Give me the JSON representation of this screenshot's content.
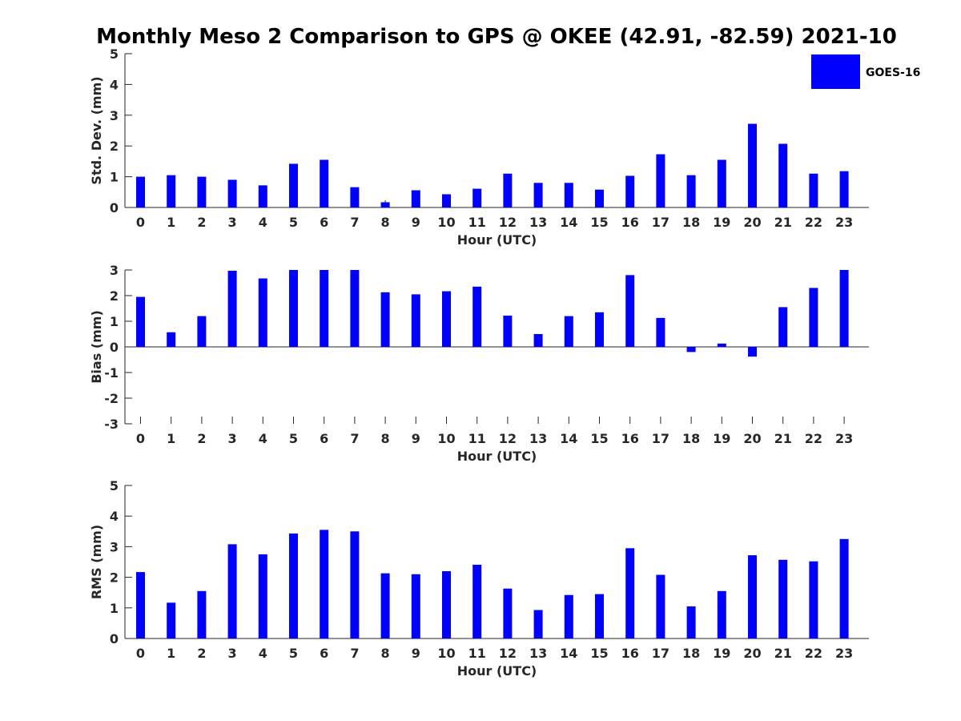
{
  "title": "Monthly Meso 2 Comparison to GPS @ OKEE (42.91, -82.59) 2021-10",
  "legend": {
    "label": "GOES-16",
    "color": "#0000ff"
  },
  "chart_data": [
    {
      "type": "bar",
      "name": "std",
      "ylabel": "Std. Dev. (mm)",
      "xlabel": "Hour (UTC)",
      "categories": [
        "0",
        "1",
        "2",
        "3",
        "4",
        "5",
        "6",
        "7",
        "8",
        "9",
        "10",
        "11",
        "12",
        "13",
        "14",
        "15",
        "16",
        "17",
        "18",
        "19",
        "20",
        "21",
        "22",
        "23"
      ],
      "ylim": [
        0,
        5
      ],
      "yticks": [
        0,
        1,
        2,
        3,
        4,
        5
      ],
      "ytick_labels": [
        "0",
        "1",
        "2",
        "3",
        "4",
        "5"
      ],
      "series": [
        {
          "name": "GOES-16",
          "color": "#0000ff",
          "values": [
            1.0,
            1.05,
            1.0,
            0.9,
            0.72,
            1.42,
            1.55,
            0.66,
            0.17,
            0.56,
            0.43,
            0.61,
            1.1,
            0.8,
            0.8,
            0.58,
            1.03,
            1.73,
            1.05,
            1.55,
            2.72,
            2.07,
            1.1,
            1.18
          ]
        }
      ]
    },
    {
      "type": "bar",
      "name": "bias",
      "ylabel": "Bias (mm)",
      "xlabel": "Hour (UTC)",
      "categories": [
        "0",
        "1",
        "2",
        "3",
        "4",
        "5",
        "6",
        "7",
        "8",
        "9",
        "10",
        "11",
        "12",
        "13",
        "14",
        "15",
        "16",
        "17",
        "18",
        "19",
        "20",
        "21",
        "22",
        "23"
      ],
      "ylim": [
        -3,
        3
      ],
      "yticks": [
        -3,
        -2,
        -1,
        0,
        1,
        2,
        3
      ],
      "ytick_labels": [
        "-3",
        "-2",
        "-1",
        "0",
        "1",
        "2",
        "3"
      ],
      "series": [
        {
          "name": "GOES-16",
          "color": "#0000ff",
          "values": [
            1.95,
            0.57,
            1.2,
            2.97,
            2.67,
            3.0,
            3.0,
            3.0,
            2.13,
            2.05,
            2.17,
            2.35,
            1.22,
            0.5,
            1.2,
            1.35,
            2.8,
            1.13,
            -0.2,
            0.13,
            -0.38,
            1.55,
            2.3,
            3.0
          ]
        }
      ]
    },
    {
      "type": "bar",
      "name": "rms",
      "ylabel": "RMS (mm)",
      "xlabel": "Hour (UTC)",
      "categories": [
        "0",
        "1",
        "2",
        "3",
        "4",
        "5",
        "6",
        "7",
        "8",
        "9",
        "10",
        "11",
        "12",
        "13",
        "14",
        "15",
        "16",
        "17",
        "18",
        "19",
        "20",
        "21",
        "22",
        "23"
      ],
      "ylim": [
        0,
        5
      ],
      "yticks": [
        0,
        1,
        2,
        3,
        4,
        5
      ],
      "ytick_labels": [
        "0",
        "1",
        "2",
        "3",
        "4",
        "5"
      ],
      "series": [
        {
          "name": "GOES-16",
          "color": "#0000ff",
          "values": [
            2.17,
            1.17,
            1.55,
            3.08,
            2.75,
            3.43,
            3.55,
            3.5,
            2.13,
            2.1,
            2.2,
            2.41,
            1.63,
            0.93,
            1.42,
            1.45,
            2.95,
            2.08,
            1.05,
            1.55,
            2.72,
            2.57,
            2.52,
            3.25
          ]
        }
      ]
    }
  ]
}
